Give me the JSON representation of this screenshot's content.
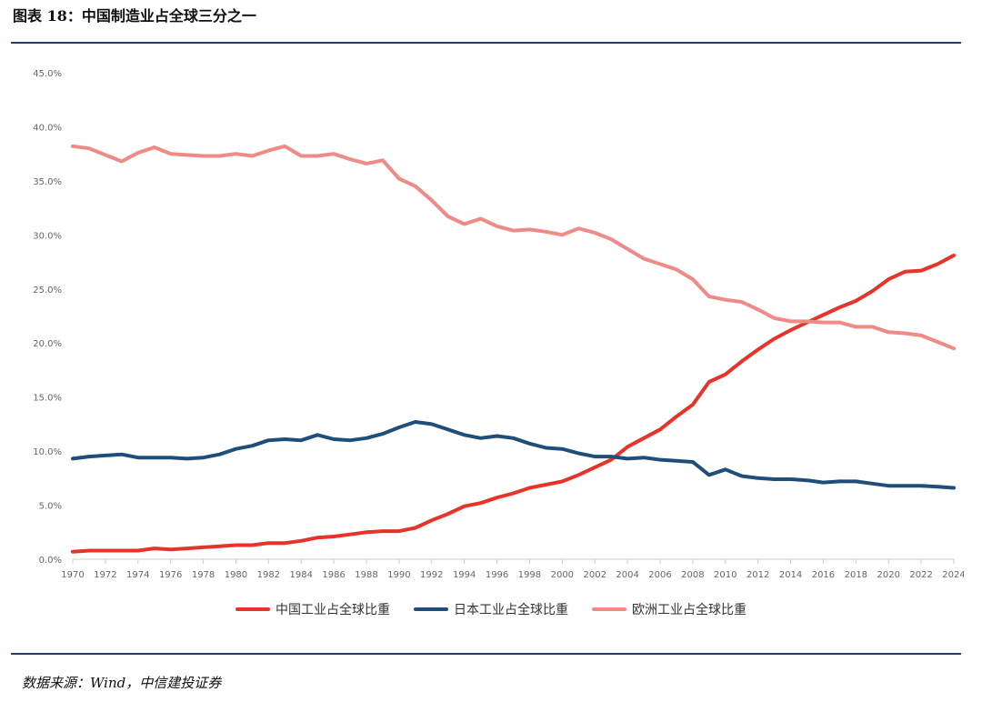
{
  "header": {
    "title": "图表 18：中国制造业占全球三分之一"
  },
  "footer": {
    "source": "数据来源：Wind，中信建投证券"
  },
  "chart_data": {
    "type": "line",
    "title": "",
    "xlabel": "",
    "ylabel": "",
    "ylim": [
      0,
      45
    ],
    "yticks": [
      "0.0%",
      "5.0%",
      "10.0%",
      "15.0%",
      "20.0%",
      "25.0%",
      "30.0%",
      "35.0%",
      "40.0%",
      "45.0%"
    ],
    "grid": false,
    "legend": "bottom",
    "x": [
      1970,
      1971,
      1972,
      1973,
      1974,
      1975,
      1976,
      1977,
      1978,
      1979,
      1980,
      1981,
      1982,
      1983,
      1984,
      1985,
      1986,
      1987,
      1988,
      1989,
      1990,
      1991,
      1992,
      1993,
      1994,
      1995,
      1996,
      1997,
      1998,
      1999,
      2000,
      2001,
      2002,
      2003,
      2004,
      2005,
      2006,
      2007,
      2008,
      2009,
      2010,
      2011,
      2012,
      2013,
      2014,
      2015,
      2016,
      2017,
      2018,
      2019,
      2020,
      2021,
      2022,
      2023,
      2024
    ],
    "series": [
      {
        "name": "中国工业占全球比重",
        "color": "#e8332a",
        "values": [
          0.7,
          0.8,
          0.8,
          0.8,
          0.8,
          1.0,
          0.9,
          1.0,
          1.1,
          1.2,
          1.3,
          1.3,
          1.5,
          1.5,
          1.7,
          2.0,
          2.1,
          2.3,
          2.5,
          2.6,
          2.6,
          2.9,
          3.6,
          4.2,
          4.9,
          5.2,
          5.7,
          6.1,
          6.6,
          6.9,
          7.2,
          7.8,
          8.5,
          9.2,
          10.4,
          11.2,
          12.0,
          13.2,
          14.3,
          16.4,
          17.1,
          18.3,
          19.4,
          20.4,
          21.2,
          21.9,
          22.6,
          23.3,
          23.9,
          24.8,
          25.9,
          26.6,
          26.7,
          27.3,
          28.1
        ]
      },
      {
        "name": "日本工业占全球比重",
        "color": "#1f4e7a",
        "values": [
          9.3,
          9.5,
          9.6,
          9.7,
          9.4,
          9.4,
          9.4,
          9.3,
          9.4,
          9.7,
          10.2,
          10.5,
          11.0,
          11.1,
          11.0,
          11.5,
          11.1,
          11.0,
          11.2,
          11.6,
          12.2,
          12.7,
          12.5,
          12.0,
          11.5,
          11.2,
          11.4,
          11.2,
          10.7,
          10.3,
          10.2,
          9.8,
          9.5,
          9.5,
          9.3,
          9.4,
          9.2,
          9.1,
          9.0,
          7.8,
          8.3,
          7.7,
          7.5,
          7.4,
          7.4,
          7.3,
          7.1,
          7.2,
          7.2,
          7.0,
          6.8,
          6.8,
          6.8,
          6.7,
          6.6
        ]
      },
      {
        "name": "欧洲工业占全球比重",
        "color": "#f08a87",
        "values": [
          38.2,
          38.0,
          37.4,
          36.8,
          37.6,
          38.1,
          37.5,
          37.4,
          37.3,
          37.3,
          37.5,
          37.3,
          37.8,
          38.2,
          37.3,
          37.3,
          37.5,
          37.0,
          36.6,
          36.9,
          35.2,
          34.5,
          33.2,
          31.7,
          31.0,
          31.5,
          30.8,
          30.4,
          30.5,
          30.3,
          30.0,
          30.6,
          30.2,
          29.6,
          28.7,
          27.8,
          27.3,
          26.8,
          25.9,
          24.3,
          24.0,
          23.8,
          23.1,
          22.3,
          22.0,
          22.0,
          21.9,
          21.9,
          21.5,
          21.5,
          21.0,
          20.9,
          20.7,
          20.1,
          19.5
        ]
      }
    ]
  }
}
